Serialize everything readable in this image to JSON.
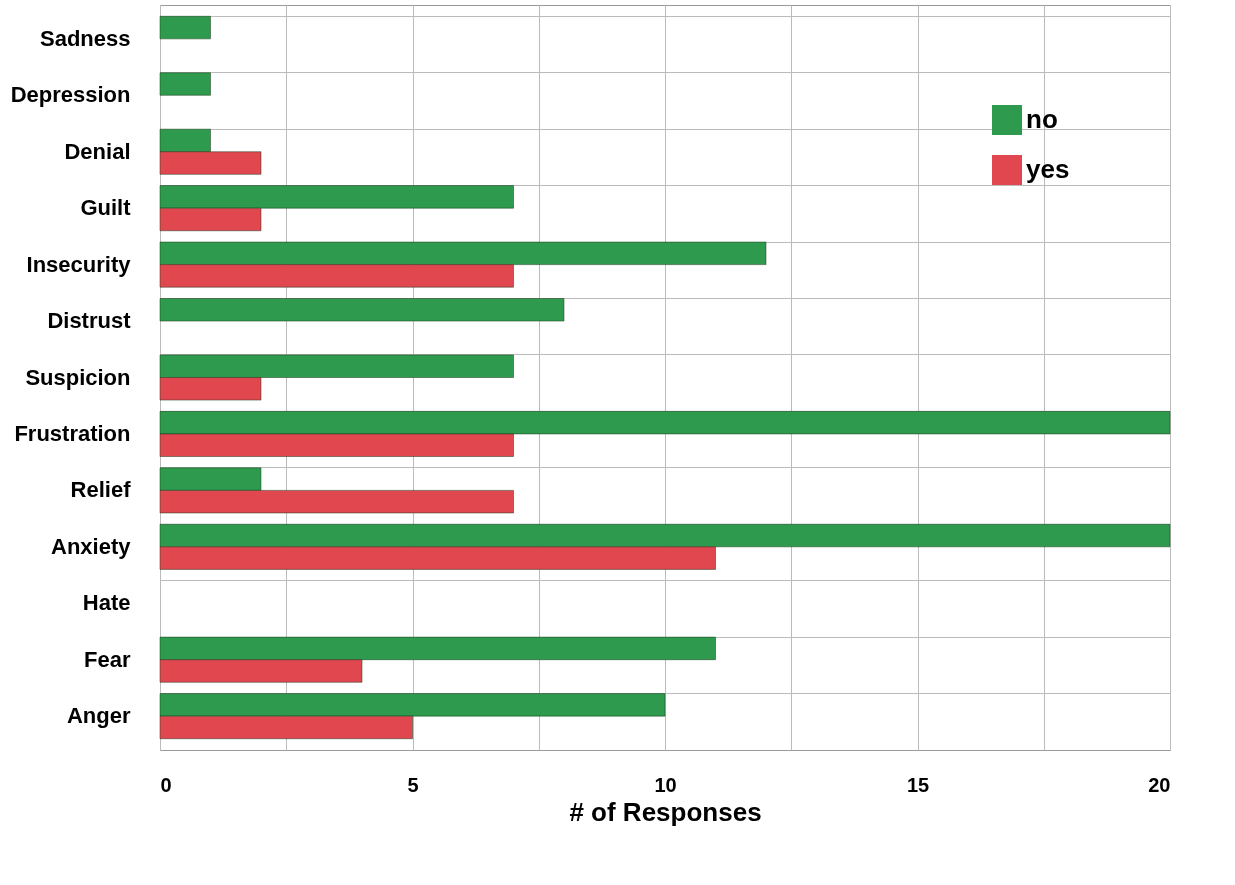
{
  "chart_data": {
    "type": "bar",
    "orientation": "horizontal",
    "xlabel": "# of Responses",
    "categories": [
      "Sadness",
      "Depression",
      "Denial",
      "Guilt",
      "Insecurity",
      "Distrust",
      "Suspicion",
      "Frustration",
      "Relief",
      "Anxiety",
      "Hate",
      "Fear",
      "Anger"
    ],
    "series": [
      {
        "name": "no",
        "color": "#2e9a4e",
        "values": [
          1,
          1,
          1,
          7,
          12,
          8,
          7,
          20,
          2,
          20,
          null,
          11,
          10
        ]
      },
      {
        "name": "yes",
        "color": "#e0474f",
        "values": [
          null,
          null,
          2,
          2,
          7,
          null,
          2,
          7,
          7,
          11,
          null,
          4,
          5
        ]
      }
    ],
    "xlim": [
      0,
      20
    ],
    "xticks": [
      0,
      {
        "value": 2.5,
        "label": null
      },
      5,
      {
        "value": 7.5,
        "label": null
      },
      10,
      {
        "value": 12.5,
        "label": null
      },
      15,
      {
        "value": 17.5,
        "label": null
      },
      20
    ],
    "grid": true,
    "legend": "top right"
  }
}
